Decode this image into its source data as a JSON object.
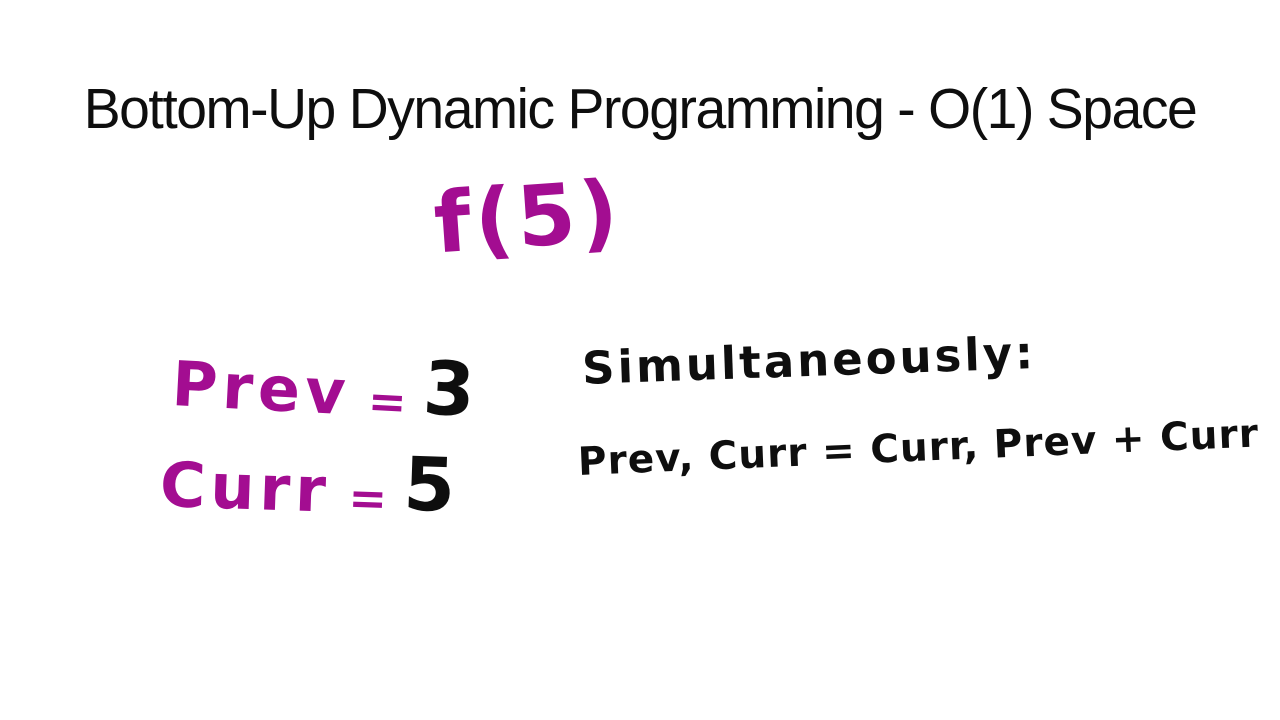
{
  "slide": {
    "title": "Bottom-Up Dynamic Programming - O(1) Space",
    "function_call": "f(5)",
    "variables": [
      {
        "name": "Prev",
        "equals": "=",
        "value": "3"
      },
      {
        "name": "Curr",
        "equals": "=",
        "value": "5"
      }
    ],
    "note": {
      "heading": "Simultaneously:",
      "expression": "Prev, Curr = Curr, Prev + Curr"
    }
  },
  "colors": {
    "background": "#ffffff",
    "ink": "#0e0e0e",
    "marker": "#a30d91"
  }
}
